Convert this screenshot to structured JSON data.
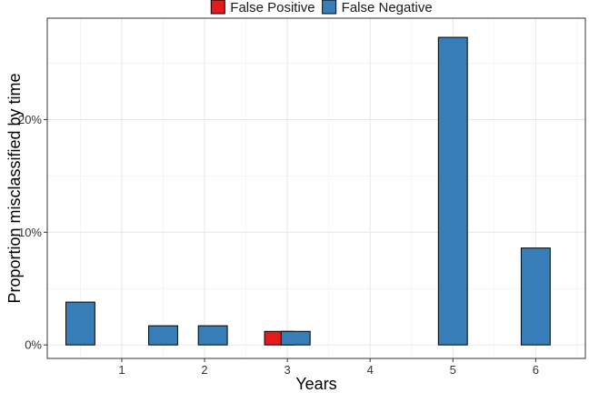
{
  "chart_data": {
    "type": "bar",
    "xlabel": "Years",
    "ylabel": "Proportion misclassified by time",
    "x_ticks": [
      "1",
      "2",
      "3",
      "4",
      "5",
      "6"
    ],
    "y_ticks": [
      "0%",
      "10%",
      "20%"
    ],
    "ylim": [
      -0.012,
      0.29
    ],
    "xlim": [
      0.1,
      6.6
    ],
    "grid": true,
    "legend_position": "top",
    "series": [
      {
        "name": "False Positive",
        "color": "#e41a1c",
        "points": [
          {
            "x": 2.9,
            "y": 0.012
          }
        ]
      },
      {
        "name": "False Negative",
        "color": "#377eb8",
        "points": [
          {
            "x": 0.5,
            "y": 0.038
          },
          {
            "x": 1.5,
            "y": 0.017
          },
          {
            "x": 2.1,
            "y": 0.017
          },
          {
            "x": 3.1,
            "y": 0.012
          },
          {
            "x": 5.0,
            "y": 0.273
          },
          {
            "x": 6.0,
            "y": 0.086
          }
        ]
      }
    ]
  }
}
